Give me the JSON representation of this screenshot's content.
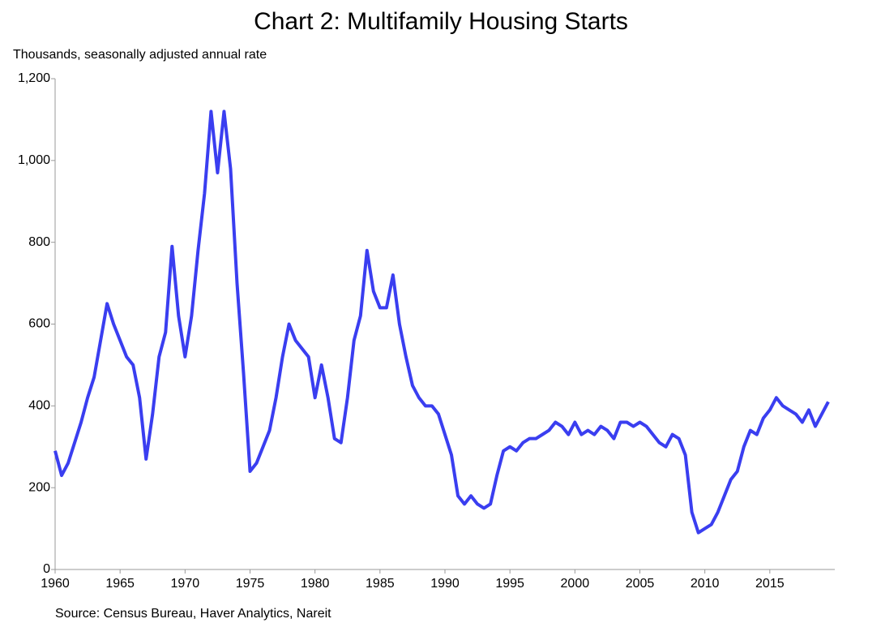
{
  "chart_data": {
    "type": "line",
    "title": "Chart 2: Multifamily Housing Starts",
    "subtitle": "Thousands, seasonally adjusted annual rate",
    "source": "Source: Census Bureau, Haver Analytics, Nareit",
    "x": [
      1960,
      1960.5,
      1961,
      1961.5,
      1962,
      1962.5,
      1963,
      1963.5,
      1964,
      1964.5,
      1965,
      1965.5,
      1966,
      1966.5,
      1967,
      1967.5,
      1968,
      1968.5,
      1969,
      1969.5,
      1970,
      1970.5,
      1971,
      1971.5,
      1972,
      1972.5,
      1973,
      1973.5,
      1974,
      1974.5,
      1975,
      1975.5,
      1976,
      1976.5,
      1977,
      1977.5,
      1978,
      1978.5,
      1979,
      1979.5,
      1980,
      1980.5,
      1981,
      1981.5,
      1982,
      1982.5,
      1983,
      1983.5,
      1984,
      1984.5,
      1985,
      1985.5,
      1986,
      1986.5,
      1987,
      1987.5,
      1988,
      1988.5,
      1989,
      1989.5,
      1990,
      1990.5,
      1991,
      1991.5,
      1992,
      1992.5,
      1993,
      1993.5,
      1994,
      1994.5,
      1995,
      1995.5,
      1996,
      1996.5,
      1997,
      1997.5,
      1998,
      1998.5,
      1999,
      1999.5,
      2000,
      2000.5,
      2001,
      2001.5,
      2002,
      2002.5,
      2003,
      2003.5,
      2004,
      2004.5,
      2005,
      2005.5,
      2006,
      2006.5,
      2007,
      2007.5,
      2008,
      2008.5,
      2009,
      2009.5,
      2010,
      2010.5,
      2011,
      2011.5,
      2012,
      2012.5,
      2013,
      2013.5,
      2014,
      2014.5,
      2015,
      2015.5,
      2016,
      2016.5,
      2017,
      2017.5,
      2018,
      2018.5,
      2019,
      2019.5
    ],
    "series": [
      {
        "name": "Multifamily Housing Starts",
        "color": "#3a3ef0",
        "values": [
          290,
          230,
          260,
          310,
          360,
          420,
          470,
          560,
          650,
          600,
          560,
          520,
          500,
          420,
          270,
          380,
          520,
          580,
          790,
          620,
          520,
          620,
          780,
          920,
          1120,
          970,
          1120,
          980,
          700,
          480,
          240,
          260,
          300,
          340,
          420,
          520,
          600,
          560,
          540,
          520,
          420,
          500,
          420,
          320,
          310,
          420,
          560,
          620,
          780,
          680,
          640,
          640,
          720,
          600,
          520,
          450,
          420,
          400,
          400,
          380,
          330,
          280,
          180,
          160,
          180,
          160,
          150,
          160,
          230,
          290,
          300,
          290,
          310,
          320,
          320,
          330,
          340,
          360,
          350,
          330,
          360,
          330,
          340,
          330,
          350,
          340,
          320,
          360,
          360,
          350,
          360,
          350,
          330,
          310,
          300,
          330,
          320,
          280,
          140,
          90,
          100,
          110,
          140,
          180,
          220,
          240,
          300,
          340,
          330,
          370,
          390,
          420,
          400,
          390,
          380,
          360,
          390,
          350,
          380,
          410
        ]
      }
    ],
    "xlim": [
      1960,
      2020
    ],
    "xticks": [
      1960,
      1965,
      1970,
      1975,
      1980,
      1985,
      1990,
      1995,
      2000,
      2005,
      2010,
      2015
    ],
    "ylim": [
      0,
      1200
    ],
    "yticks": [
      0,
      200,
      400,
      600,
      800,
      {
        "value": 1000,
        "label": "1,000"
      },
      {
        "value": 1200,
        "label": "1,200"
      }
    ],
    "grid": false
  }
}
